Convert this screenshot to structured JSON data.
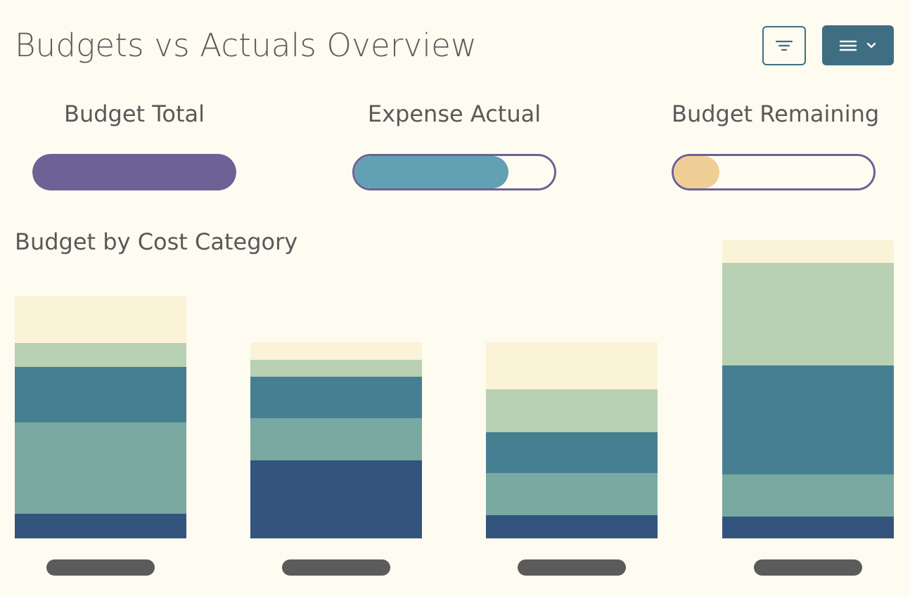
{
  "header": {
    "title": "Budgets vs Actuals Overview",
    "filter_icon": "filter-icon",
    "menu_icon": "hamburger-menu-icon",
    "dropdown_icon": "chevron-down-icon"
  },
  "kpis": [
    {
      "label": "Budget Total",
      "fill_fraction": 1.0,
      "color": "#6e6196",
      "outlined": false
    },
    {
      "label": "Expense Actual",
      "fill_fraction": 0.77,
      "color": "#62a0b4",
      "outlined": true
    },
    {
      "label": "Budget Remaining",
      "fill_fraction": 0.23,
      "color": "#f0cf96",
      "outlined": true
    }
  ],
  "section": {
    "title": "Budget by Cost Category"
  },
  "colors": {
    "background": "#fefbf0",
    "accent": "#3f6e82",
    "kpi_border": "#6e6196",
    "x_label_placeholder": "#5b5b5b"
  },
  "chart_data": {
    "type": "bar",
    "stacked": true,
    "categories": [
      "",
      "",
      "",
      ""
    ],
    "ylim": [
      0,
      425
    ],
    "series": [
      {
        "color": "#33547c",
        "values": [
          35,
          111,
          33,
          31
        ]
      },
      {
        "color": "#79a9a1",
        "values": [
          130,
          60,
          60,
          60
        ]
      },
      {
        "color": "#467f92",
        "values": [
          79,
          59,
          58,
          155
        ]
      },
      {
        "color": "#b8d0b3",
        "values": [
          34,
          24,
          61,
          146
        ]
      },
      {
        "color": "#faf3d7",
        "values": [
          67,
          25,
          67,
          32
        ]
      }
    ]
  }
}
